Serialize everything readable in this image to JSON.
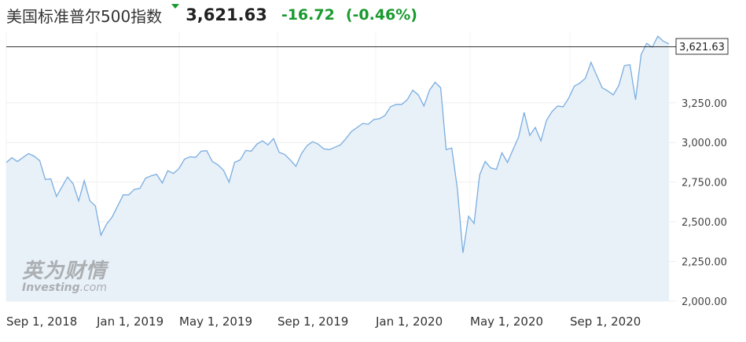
{
  "header": {
    "index_name": "美国标准普尔500指数",
    "price": "3,621.63",
    "change": "-16.72",
    "change_pct": "(-0.46%)"
  },
  "colors": {
    "line": "#7aaee0",
    "area": "#e8f0f8",
    "positive_change": "#1a9a2f",
    "last_price_line": "#333333"
  },
  "watermark": {
    "logo_cn": "英为财情",
    "logo_en": "Investing",
    "logo_en_suffix": ".com"
  },
  "chart_data": {
    "type": "area",
    "title": "",
    "xlabel": "",
    "ylabel": "",
    "x_tick_labels": [
      "Sep 1, 2018",
      "Jan 1, 2019",
      "May 1, 2019",
      "Sep 1, 2019",
      "Jan 1, 2020",
      "May 1, 2020",
      "Sep 1, 2020"
    ],
    "y_tick_labels": [
      "2,000.00",
      "2,250.00",
      "2,500.00",
      "2,750.00",
      "3,000.00",
      "3,250.00"
    ],
    "ylim": [
      2000,
      3700
    ],
    "last_price_label": "3,621.63",
    "last_price": 3621.63,
    "grid": true,
    "series": [
      {
        "values": [
          2874,
          2904,
          2880,
          2906,
          2930,
          2914,
          2886,
          2767,
          2770,
          2660,
          2720,
          2782,
          2740,
          2632,
          2760,
          2633,
          2600,
          2416,
          2485,
          2530,
          2600,
          2670,
          2670,
          2705,
          2710,
          2775,
          2790,
          2800,
          2745,
          2822,
          2805,
          2835,
          2895,
          2910,
          2906,
          2945,
          2948,
          2880,
          2860,
          2825,
          2750,
          2875,
          2890,
          2950,
          2945,
          2990,
          3010,
          2985,
          3025,
          2938,
          2925,
          2890,
          2850,
          2930,
          2980,
          3005,
          2990,
          2960,
          2955,
          2970,
          2985,
          3025,
          3070,
          3095,
          3120,
          3115,
          3145,
          3150,
          3170,
          3225,
          3240,
          3240,
          3270,
          3330,
          3300,
          3230,
          3330,
          3380,
          3345,
          2955,
          2965,
          2710,
          2305,
          2535,
          2490,
          2795,
          2880,
          2840,
          2830,
          2935,
          2875,
          2955,
          3035,
          3190,
          3045,
          3095,
          3010,
          3140,
          3195,
          3230,
          3225,
          3280,
          3355,
          3375,
          3405,
          3505,
          3425,
          3345,
          3325,
          3300,
          3360,
          3485,
          3490,
          3270,
          3555,
          3625,
          3600,
          3670,
          3638,
          3621.63
        ]
      }
    ]
  }
}
